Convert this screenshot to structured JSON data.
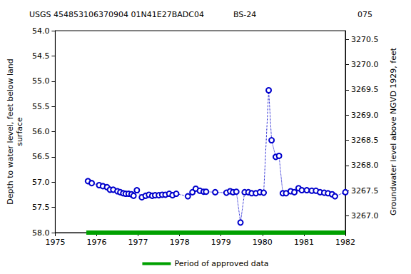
{
  "chart_data": {
    "type": "line",
    "title": "USGS 454853106370904 01N41E27BADC04",
    "annotations": [
      "BS-24",
      "075"
    ],
    "y_label": "Depth to water level, feet below land\nsurface",
    "y2_label": "Groundwater level above NGVD 1929, feet",
    "x": [
      1975.79,
      1975.88,
      1976.06,
      1976.15,
      1976.25,
      1976.32,
      1976.4,
      1976.5,
      1976.57,
      1976.64,
      1976.7,
      1976.77,
      1976.84,
      1976.89,
      1976.97,
      1977.09,
      1977.18,
      1977.26,
      1977.34,
      1977.41,
      1977.5,
      1977.58,
      1977.66,
      1977.75,
      1977.83,
      1977.92,
      1978.2,
      1978.31,
      1978.39,
      1978.49,
      1978.58,
      1978.64,
      1978.86,
      1979.13,
      1979.22,
      1979.29,
      1979.37,
      1979.47,
      1979.57,
      1979.66,
      1979.74,
      1979.84,
      1979.94,
      1980.03,
      1980.15,
      1980.22,
      1980.32,
      1980.4,
      1980.49,
      1980.57,
      1980.68,
      1980.77,
      1980.87,
      1980.95,
      1981.07,
      1981.19,
      1981.29,
      1981.39,
      1981.49,
      1981.58,
      1981.68,
      1981.75,
      1982.0
    ],
    "values": [
      56.98,
      57.02,
      57.06,
      57.08,
      57.1,
      57.15,
      57.15,
      57.18,
      57.2,
      57.22,
      57.23,
      57.23,
      57.24,
      57.27,
      57.16,
      57.3,
      57.27,
      57.25,
      57.27,
      57.26,
      57.26,
      57.25,
      57.25,
      57.23,
      57.26,
      57.23,
      57.28,
      57.2,
      57.13,
      57.17,
      57.19,
      57.19,
      57.2,
      57.21,
      57.18,
      57.2,
      57.19,
      57.8,
      57.2,
      57.2,
      57.22,
      57.22,
      57.2,
      57.21,
      55.18,
      56.17,
      56.5,
      56.48,
      57.22,
      57.22,
      57.18,
      57.2,
      57.12,
      57.16,
      57.16,
      57.17,
      57.17,
      57.2,
      57.21,
      57.22,
      57.24,
      57.28,
      57.2
    ],
    "color": "#0000cc",
    "marker": "circle",
    "line_style": "dotted",
    "approved": {
      "name": "Period of approved data",
      "color": "#00a000",
      "x": [
        1975.75,
        1982
      ]
    },
    "xlim": [
      1975,
      1982
    ],
    "xticks": [
      1975,
      1976,
      1977,
      1978,
      1979,
      1980,
      1981,
      1982
    ],
    "ylim": [
      54,
      58
    ],
    "yticks": [
      {
        "value": 54,
        "label": "54.0"
      },
      {
        "value": 54.5,
        "label": "54.5"
      },
      {
        "value": 55,
        "label": "55.0"
      },
      {
        "value": 55.5,
        "label": "55.5"
      },
      {
        "value": 56,
        "label": "56.0"
      },
      {
        "value": 56.5,
        "label": "56.5"
      },
      {
        "value": 57,
        "label": "57.0"
      },
      {
        "value": 57.5,
        "label": "57.5"
      },
      {
        "value": 58,
        "label": "58.0"
      }
    ],
    "y2lim": [
      3270.67,
      3266.67
    ],
    "y2ticks": [
      {
        "value": 3267,
        "label": "3267.0"
      },
      {
        "value": 3267.5,
        "label": "3267.5"
      },
      {
        "value": 3268,
        "label": "3268.0"
      },
      {
        "value": 3268.5,
        "label": "3268.5"
      },
      {
        "value": 3269,
        "label": "3269.0"
      },
      {
        "value": 3269.5,
        "label": "3269.5"
      },
      {
        "value": 3270,
        "label": "3270.0"
      },
      {
        "value": 3270.5,
        "label": "3270.5"
      }
    ],
    "grid": false,
    "legend": "bottom"
  }
}
